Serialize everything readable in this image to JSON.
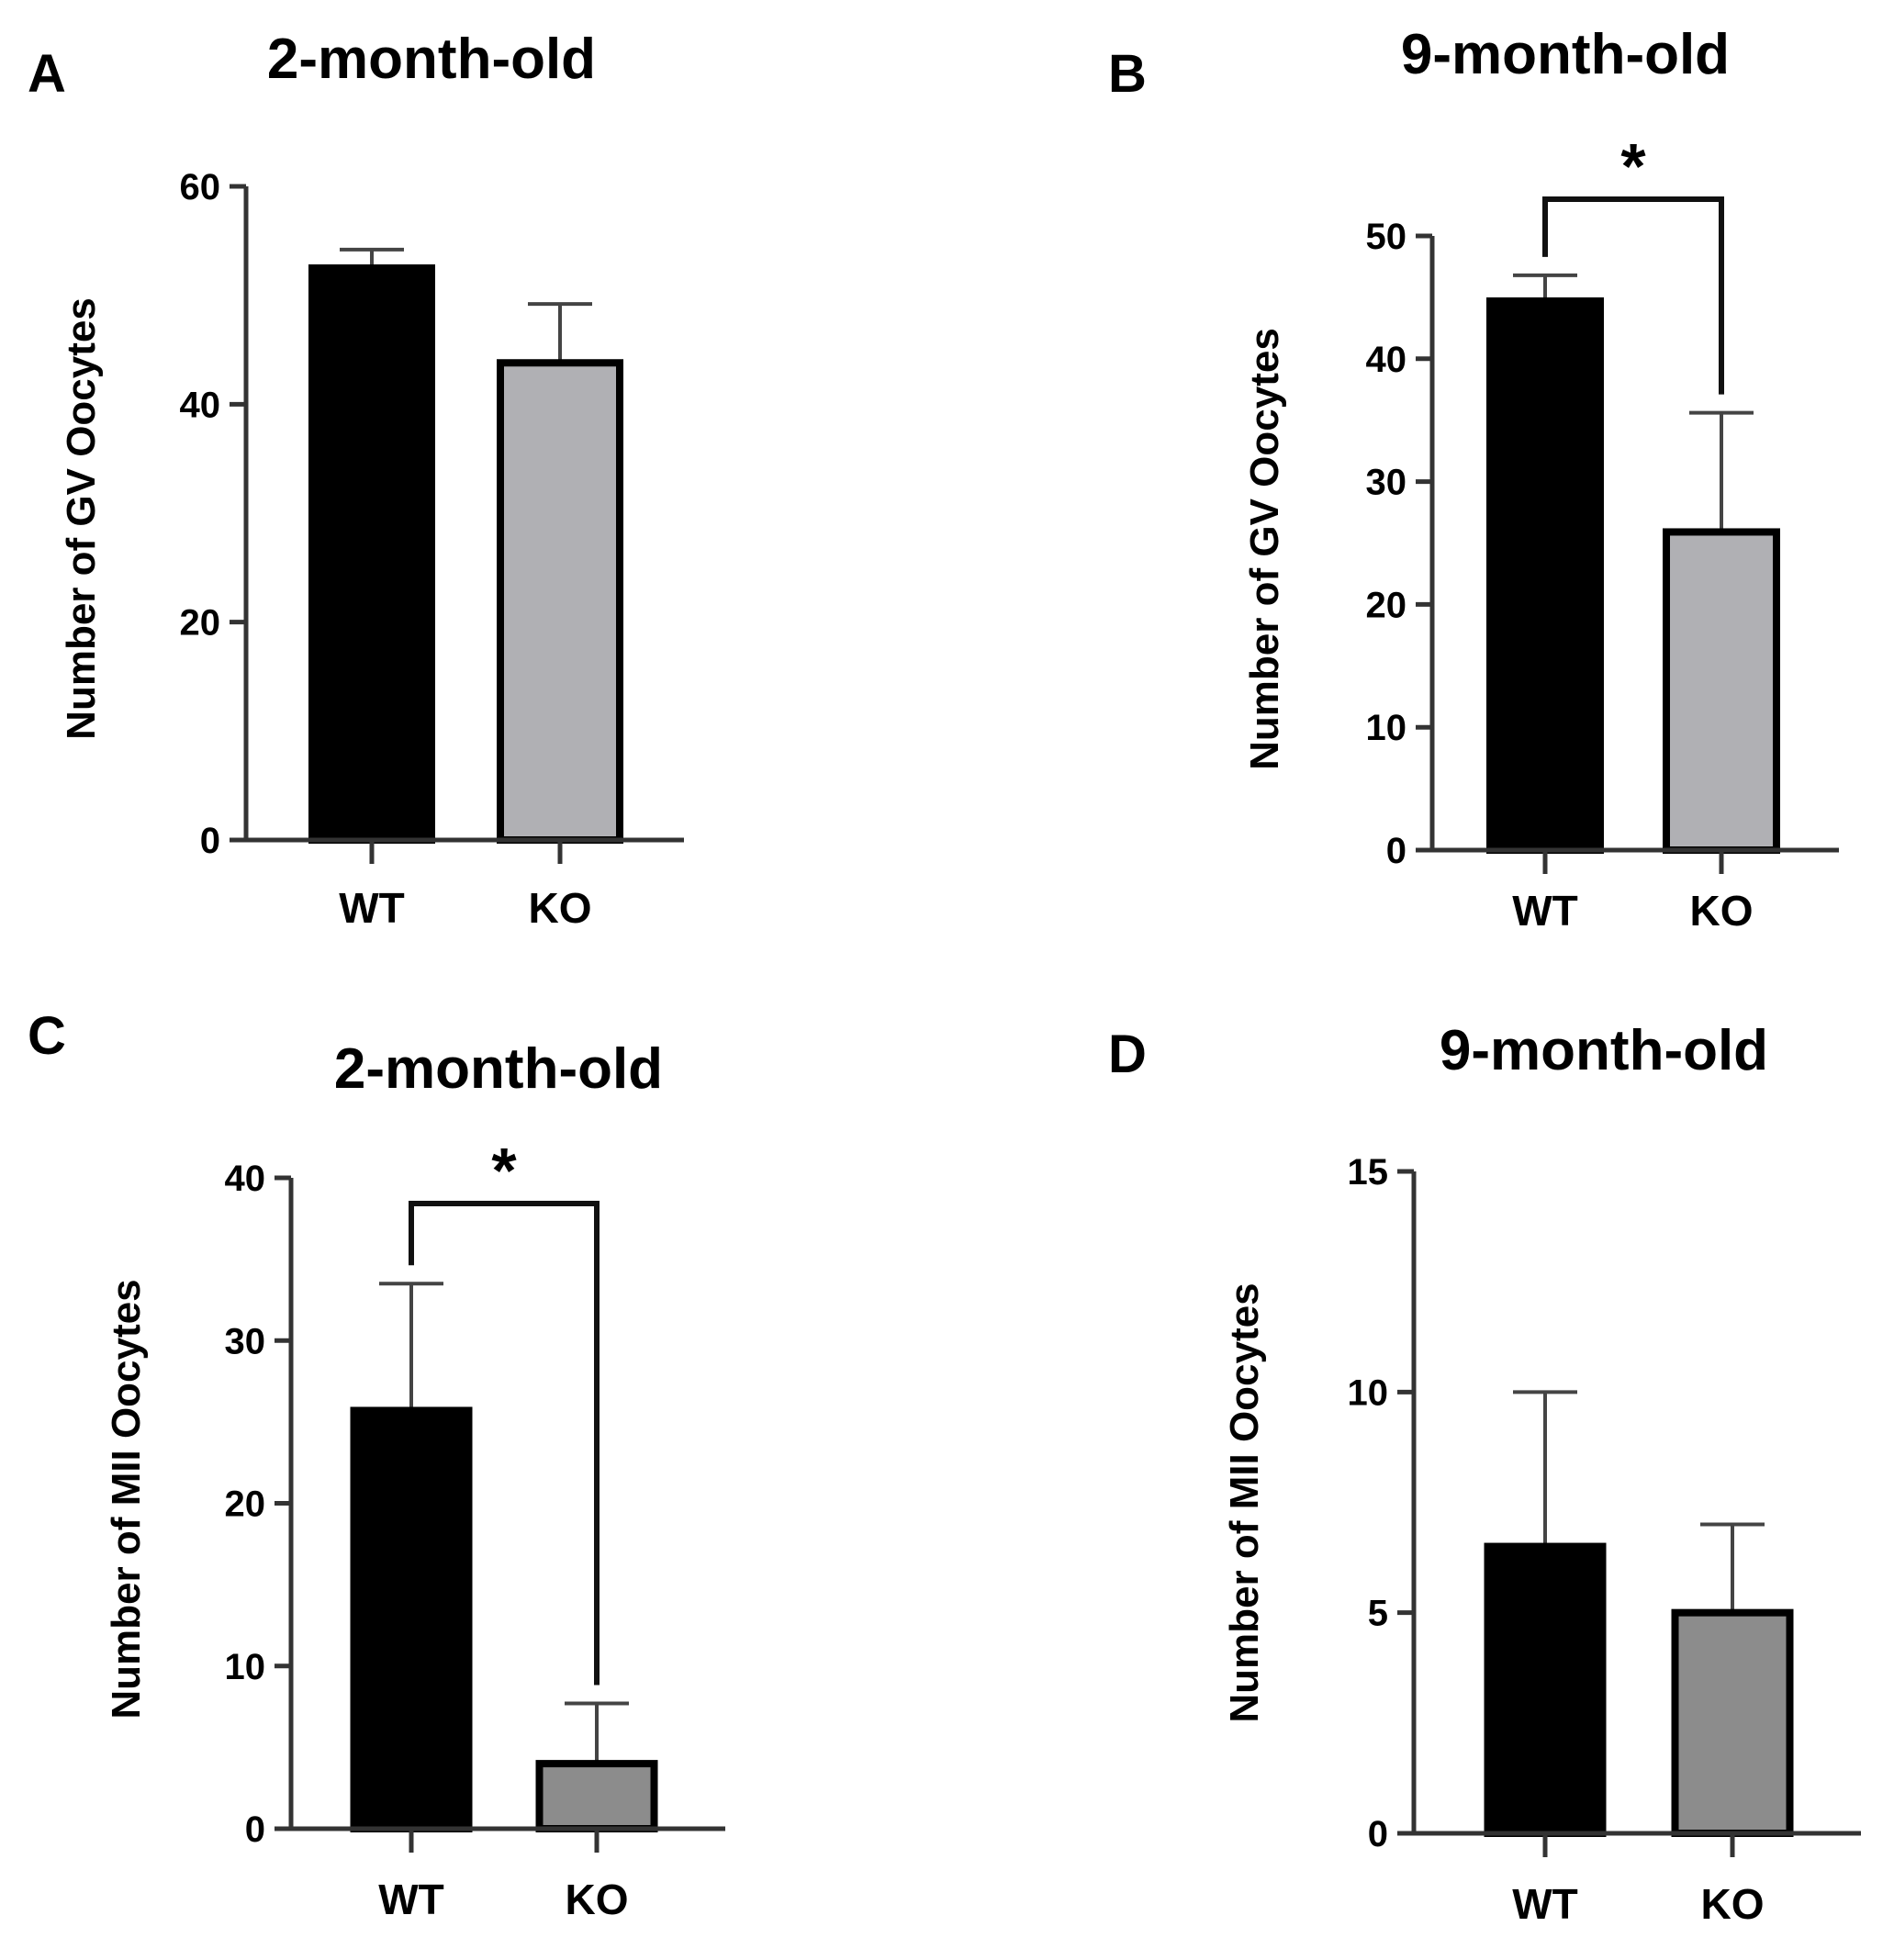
{
  "chart_data": [
    {
      "type": "bar",
      "panel": "A",
      "title": "2-month-old",
      "xlabel": "",
      "ylabel": "Number of GV Oocytes",
      "categories": [
        "WT",
        "KO"
      ],
      "values": [
        52.5,
        43.8
      ],
      "errors": [
        1.7,
        5.4
      ],
      "colors": [
        "#000000",
        "#b0b0b4"
      ],
      "ylim": [
        0,
        60
      ],
      "yticks": [
        "0",
        "20",
        "40",
        "60"
      ],
      "significance": null
    },
    {
      "type": "bar",
      "panel": "B",
      "title": "9-month-old",
      "xlabel": "",
      "ylabel": "Number of GV Oocytes",
      "categories": [
        "WT",
        "KO"
      ],
      "values": [
        44.7,
        25.9
      ],
      "errors": [
        2.1,
        9.7
      ],
      "colors": [
        "#000000",
        "#b0b0b4"
      ],
      "ylim": [
        0,
        50
      ],
      "yticks": [
        "0",
        "10",
        "20",
        "30",
        "40",
        "50"
      ],
      "significance": {
        "label": "*",
        "from": "WT",
        "to": "KO"
      }
    },
    {
      "type": "bar",
      "panel": "C",
      "title": "2-month-old",
      "xlabel": "",
      "ylabel": "Number of MII Oocytes",
      "categories": [
        "WT",
        "KO"
      ],
      "values": [
        25.7,
        4.0
      ],
      "errors": [
        7.8,
        3.7
      ],
      "colors": [
        "#000000",
        "#8c8c8c"
      ],
      "ylim": [
        0,
        40
      ],
      "yticks": [
        "0",
        "10",
        "20",
        "30",
        "40"
      ],
      "significance": {
        "label": "*",
        "from": "WT",
        "to": "KO"
      }
    },
    {
      "type": "bar",
      "panel": "D",
      "title": "9-month-old",
      "xlabel": "",
      "ylabel": "Number of MII Oocytes",
      "categories": [
        "WT",
        "KO"
      ],
      "values": [
        6.5,
        5.0
      ],
      "errors": [
        3.5,
        2.0
      ],
      "colors": [
        "#000000",
        "#8c8c8c"
      ],
      "ylim": [
        0,
        15
      ],
      "yticks": [
        "0",
        "5",
        "10",
        "15"
      ],
      "significance": null
    }
  ]
}
